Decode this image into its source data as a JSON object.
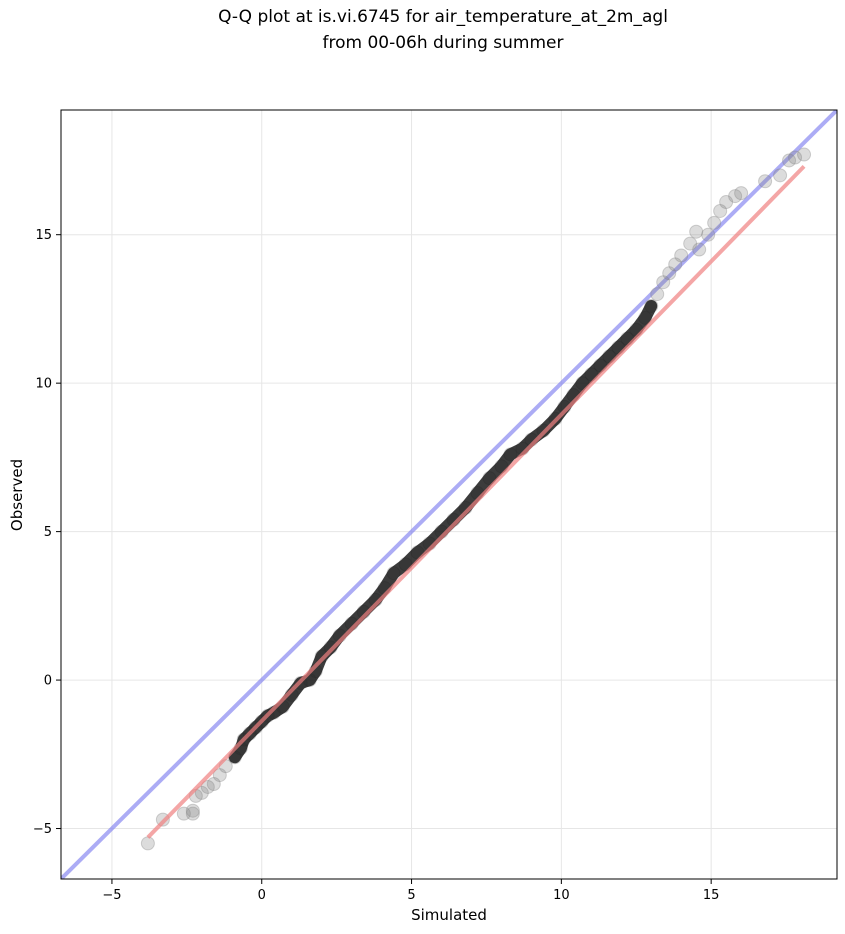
{
  "chart_data": {
    "type": "scatter",
    "title_line1": "Q-Q plot at is.vi.6745 for air_temperature_at_2m_agl",
    "title_line2": "from 00-06h during summer",
    "xlabel": "Simulated",
    "ylabel": "Observed",
    "xlim": [
      -6.7,
      19.2
    ],
    "ylim": [
      -6.7,
      19.2
    ],
    "xticks": [
      -5,
      0,
      5,
      10,
      15
    ],
    "yticks": [
      -5,
      0,
      5,
      10,
      15
    ],
    "xtick_labels": [
      "−5",
      "0",
      "5",
      "10",
      "15"
    ],
    "ytick_labels": [
      "−5",
      "0",
      "5",
      "10",
      "15"
    ],
    "grid": true,
    "colors": {
      "points": "#808080",
      "fit_line": "#f08080",
      "identity_line": "#8080f0",
      "dense_core": "#1a1a1a"
    },
    "fit_line": {
      "x": [
        -3.8,
        18.1
      ],
      "y": [
        -5.3,
        17.3
      ]
    },
    "identity_line": {
      "x": [
        -6.7,
        19.2
      ],
      "y": [
        -6.7,
        19.2
      ]
    },
    "points": {
      "x": [
        -3.8,
        -3.3,
        -2.6,
        -2.3,
        -2.3,
        -2.2,
        -2.0,
        -1.8,
        -1.6,
        -1.4,
        -1.2,
        -0.9,
        -0.7,
        -0.6,
        -0.4,
        -0.2,
        0.0,
        0.2,
        0.4,
        0.7,
        1.0,
        1.3,
        1.6,
        1.8,
        2.0,
        2.3,
        2.6,
        3.0,
        3.4,
        3.8,
        4.1,
        4.4,
        4.8,
        5.2,
        5.6,
        6.0,
        6.4,
        6.8,
        7.2,
        7.6,
        8.0,
        8.3,
        8.7,
        9.0,
        9.4,
        9.8,
        10.1,
        10.4,
        10.7,
        11.0,
        11.3,
        11.6,
        11.9,
        12.2,
        12.5,
        12.8,
        13.0,
        13.2,
        13.4,
        13.6,
        13.8,
        14.0,
        14.3,
        14.5,
        14.6,
        14.9,
        15.1,
        15.3,
        15.5,
        15.8,
        16.0,
        16.8,
        17.3,
        17.6,
        17.8,
        18.1
      ],
      "y": [
        -5.5,
        -4.7,
        -4.5,
        -4.5,
        -4.4,
        -3.9,
        -3.8,
        -3.6,
        -3.5,
        -3.2,
        -2.9,
        -2.6,
        -2.3,
        -2.0,
        -1.8,
        -1.6,
        -1.4,
        -1.2,
        -1.1,
        -0.9,
        -0.5,
        -0.1,
        0.0,
        0.3,
        0.8,
        1.1,
        1.5,
        1.9,
        2.3,
        2.7,
        3.1,
        3.6,
        3.9,
        4.3,
        4.6,
        5.0,
        5.4,
        5.8,
        6.3,
        6.8,
        7.2,
        7.6,
        7.8,
        8.1,
        8.4,
        8.8,
        9.2,
        9.6,
        10.0,
        10.3,
        10.6,
        10.9,
        11.2,
        11.5,
        11.8,
        12.2,
        12.6,
        13.0,
        13.4,
        13.7,
        14.0,
        14.3,
        14.7,
        15.1,
        14.5,
        15.0,
        15.4,
        15.8,
        16.1,
        16.3,
        16.4,
        16.8,
        17.0,
        17.5,
        17.6,
        17.7
      ]
    }
  }
}
